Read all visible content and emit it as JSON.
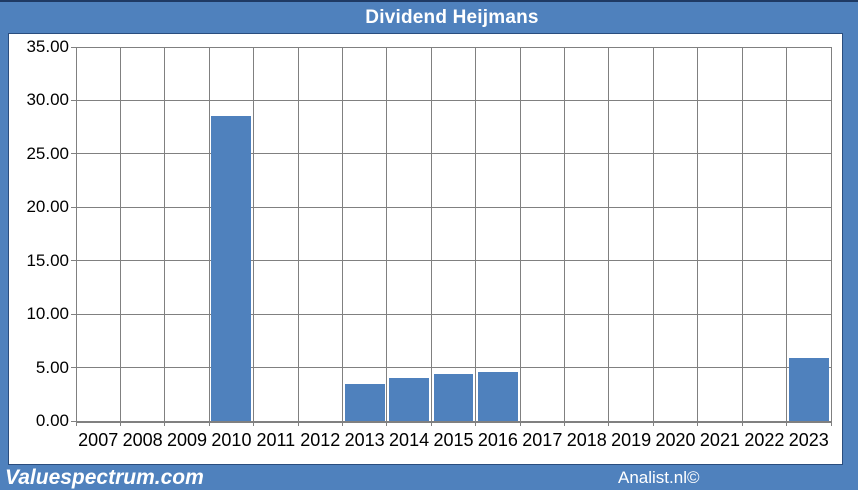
{
  "title": "Dividend Heijmans",
  "footer": {
    "left": "Valuespectrum.com",
    "right": "Analist.nl©"
  },
  "colors": {
    "brand_blue": "#4f81bd",
    "bar_fill": "#4f81bd",
    "top_line": "#1f3a64",
    "grid_gray": "#808080",
    "panel_border": "#2a4d7e",
    "axis_text": "#000000",
    "title_text": "#ffffff"
  },
  "chart_data": {
    "type": "bar",
    "title": "Dividend Heijmans",
    "categories": [
      "2007",
      "2008",
      "2009",
      "2010",
      "2011",
      "2012",
      "2013",
      "2014",
      "2015",
      "2016",
      "2017",
      "2018",
      "2019",
      "2020",
      "2021",
      "2022",
      "2023"
    ],
    "values": [
      0,
      0,
      0,
      28.5,
      0,
      0,
      3.5,
      4.0,
      4.4,
      4.6,
      0,
      0,
      0,
      0,
      0,
      0,
      5.9
    ],
    "xlabel": "",
    "ylabel": "",
    "ylim": [
      0,
      35
    ],
    "ytick_step": 5,
    "ytick_labels": [
      "35.00",
      "30.00",
      "25.00",
      "20.00",
      "15.00",
      "10.00",
      "5.00",
      "0.00"
    ],
    "grid": true,
    "legend": "none"
  }
}
